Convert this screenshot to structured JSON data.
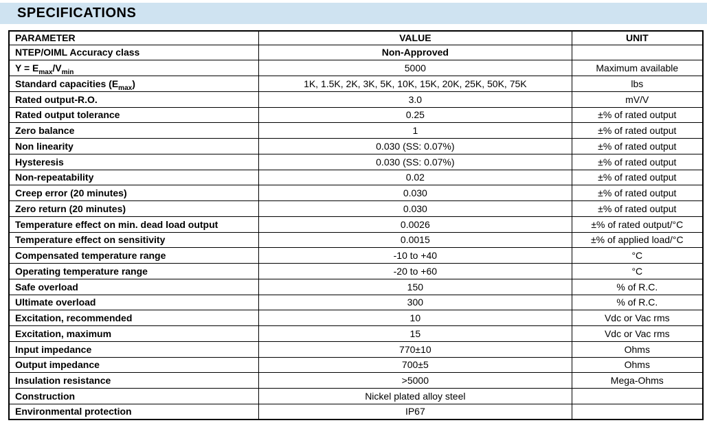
{
  "page": {
    "title": "SPECIFICATIONS"
  },
  "colors": {
    "title_band_background": "#cfe3f1",
    "table_border": "#000000",
    "text": "#000000"
  },
  "table": {
    "headers": [
      "PARAMETER",
      "VALUE",
      "UNIT"
    ],
    "rows": [
      {
        "parameter": "NTEP/OIML Accuracy class",
        "value": "Non-Approved",
        "value_bold": true,
        "unit": ""
      },
      {
        "parameter": "Y = E~max~/V~min~",
        "value": "5000",
        "unit": "Maximum available"
      },
      {
        "parameter": "Standard capacities (E~max~)",
        "value": "1K, 1.5K, 2K, 3K, 5K, 10K, 15K, 20K, 25K, 50K, 75K",
        "unit": "lbs"
      },
      {
        "parameter": "Rated output-R.O.",
        "value": "3.0",
        "unit": "mV/V"
      },
      {
        "parameter": "Rated output tolerance",
        "value": "0.25",
        "unit": "±% of rated output"
      },
      {
        "parameter": "Zero balance",
        "value": "1",
        "unit": "±% of rated output"
      },
      {
        "parameter": "Non linearity",
        "value": "0.030 (SS: 0.07%)",
        "unit": "±% of rated output"
      },
      {
        "parameter": "Hysteresis",
        "value": "0.030 (SS: 0.07%)",
        "unit": "±% of rated output"
      },
      {
        "parameter": "Non-repeatability",
        "value": "0.02",
        "unit": "±% of rated output"
      },
      {
        "parameter": "Creep error (20 minutes)",
        "value": "0.030",
        "unit": "±% of rated output"
      },
      {
        "parameter": "Zero return (20 minutes)",
        "value": "0.030",
        "unit": "±% of rated output"
      },
      {
        "parameter": "Temperature effect on min. dead load output",
        "value": "0.0026",
        "unit": "±% of rated output/°C"
      },
      {
        "parameter": "Temperature effect on sensitivity",
        "value": "0.0015",
        "unit": "±% of applied load/°C"
      },
      {
        "parameter": "Compensated temperature range",
        "value": "-10 to +40",
        "unit": "°C"
      },
      {
        "parameter": "Operating temperature range",
        "value": "-20 to +60",
        "unit": "°C"
      },
      {
        "parameter": "Safe overload",
        "value": "150",
        "unit": "% of R.C."
      },
      {
        "parameter": "Ultimate overload",
        "value": "300",
        "unit": "% of R.C."
      },
      {
        "parameter": "Excitation, recommended",
        "value": "10",
        "unit": "Vdc or Vac rms"
      },
      {
        "parameter": "Excitation, maximum",
        "value": "15",
        "unit": "Vdc or Vac rms"
      },
      {
        "parameter": "Input impedance",
        "value": "770±10",
        "unit": "Ohms"
      },
      {
        "parameter": "Output impedance",
        "value": "700±5",
        "unit": "Ohms"
      },
      {
        "parameter": "Insulation resistance",
        "value": ">5000",
        "unit": "Mega-Ohms"
      },
      {
        "parameter": "Construction",
        "value": "Nickel plated alloy steel",
        "unit": ""
      },
      {
        "parameter": "Environmental protection",
        "value": "IP67",
        "unit": ""
      }
    ]
  }
}
